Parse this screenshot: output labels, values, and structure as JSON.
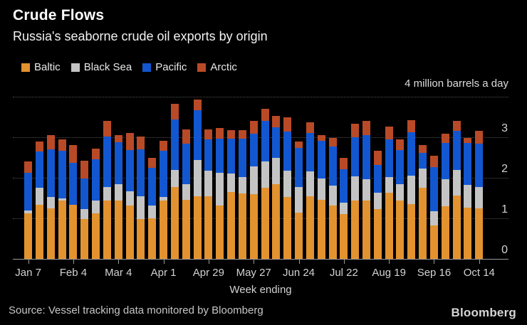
{
  "header": {
    "title": "Crude Flows",
    "subtitle": "Russia's seaborne crude oil exports by origin"
  },
  "axis_note": "4 million barrels a day",
  "x_axis_title": "Week ending",
  "source": "Source: Vessel tracking data monitored by Bloomberg",
  "brand": "Bloomberg",
  "colors": {
    "background": "#000000",
    "grid": "#4f4f4f",
    "axis": "#9a9a9a",
    "text": "#d2d2d2"
  },
  "chart_data": {
    "type": "bar",
    "stacked": true,
    "title": "Crude Flows",
    "subtitle": "Russia's seaborne crude oil exports by origin",
    "ylabel": "million barrels a day",
    "ylim": [
      0,
      4
    ],
    "yticks": [
      0,
      1,
      2,
      3
    ],
    "grid_values": [
      1,
      2,
      3,
      4
    ],
    "legend_position": "top",
    "xlabel": "Week ending",
    "x_tick_labels": [
      "Jan 7",
      "Feb 4",
      "Mar 4",
      "Apr 1",
      "Apr 29",
      "May 27",
      "Jun 24",
      "Jul 22",
      "Aug 19",
      "Sep 16",
      "Oct 14"
    ],
    "x_tick_every": 4,
    "categories": [
      "Jan 7",
      "Jan 14",
      "Jan 21",
      "Jan 28",
      "Feb 4",
      "Feb 11",
      "Feb 18",
      "Feb 25",
      "Mar 4",
      "Mar 11",
      "Mar 18",
      "Mar 25",
      "Apr 1",
      "Apr 8",
      "Apr 15",
      "Apr 22",
      "Apr 29",
      "May 6",
      "May 13",
      "May 20",
      "May 27",
      "Jun 3",
      "Jun 10",
      "Jun 17",
      "Jun 24",
      "Jul 1",
      "Jul 8",
      "Jul 15",
      "Jul 22",
      "Jul 29",
      "Aug 5",
      "Aug 12",
      "Aug 19",
      "Aug 26",
      "Sep 2",
      "Sep 9",
      "Sep 16",
      "Sep 23",
      "Sep 30",
      "Oct 7",
      "Oct 14"
    ],
    "series": [
      {
        "name": "Baltic",
        "color": "#e2922e",
        "values": [
          1.12,
          1.33,
          1.24,
          1.43,
          1.33,
          0.99,
          1.12,
          1.43,
          1.44,
          1.31,
          0.99,
          1.0,
          1.44,
          1.77,
          1.46,
          1.55,
          1.54,
          1.31,
          1.65,
          1.61,
          1.59,
          1.76,
          1.85,
          1.52,
          1.14,
          1.55,
          1.46,
          1.32,
          1.11,
          1.44,
          1.43,
          1.22,
          1.64,
          1.43,
          1.35,
          1.76,
          0.83,
          1.3,
          1.56,
          1.26,
          1.25
        ]
      },
      {
        "name": "Black Sea",
        "color": "#c4c4c4",
        "values": [
          0.08,
          0.42,
          0.28,
          0.07,
          0.0,
          0.24,
          0.32,
          0.34,
          0.41,
          0.36,
          0.56,
          0.32,
          0.08,
          0.42,
          0.38,
          0.88,
          0.63,
          0.81,
          0.45,
          0.41,
          0.69,
          0.64,
          0.64,
          0.65,
          0.64,
          0.6,
          0.53,
          0.49,
          0.28,
          0.59,
          0.54,
          0.41,
          0.37,
          0.42,
          0.7,
          0.47,
          0.34,
          0.66,
          0.63,
          0.56,
          0.52
        ]
      },
      {
        "name": "Pacific",
        "color": "#1257d0",
        "values": [
          0.93,
          0.9,
          1.18,
          1.16,
          1.04,
          0.76,
          1.02,
          1.25,
          1.02,
          1.02,
          1.15,
          0.93,
          1.15,
          1.25,
          1.01,
          1.23,
          0.78,
          0.84,
          0.86,
          0.94,
          0.81,
          1.01,
          0.76,
          0.97,
          0.96,
          0.96,
          0.92,
          0.97,
          0.82,
          0.97,
          1.08,
          0.69,
          0.94,
          0.84,
          1.08,
          0.39,
          1.09,
          0.9,
          0.96,
          1.04,
          1.07
        ]
      },
      {
        "name": "Arctic",
        "color": "#b94a27",
        "values": [
          0.28,
          0.24,
          0.35,
          0.28,
          0.44,
          0.43,
          0.26,
          0.39,
          0.19,
          0.42,
          0.31,
          0.24,
          0.25,
          0.39,
          0.34,
          0.27,
          0.24,
          0.26,
          0.22,
          0.22,
          0.31,
          0.29,
          0.28,
          0.36,
          0.15,
          0.26,
          0.15,
          0.21,
          0.28,
          0.34,
          0.36,
          0.35,
          0.32,
          0.26,
          0.3,
          0.19,
          0.28,
          0.23,
          0.25,
          0.13,
          0.31
        ]
      }
    ]
  }
}
